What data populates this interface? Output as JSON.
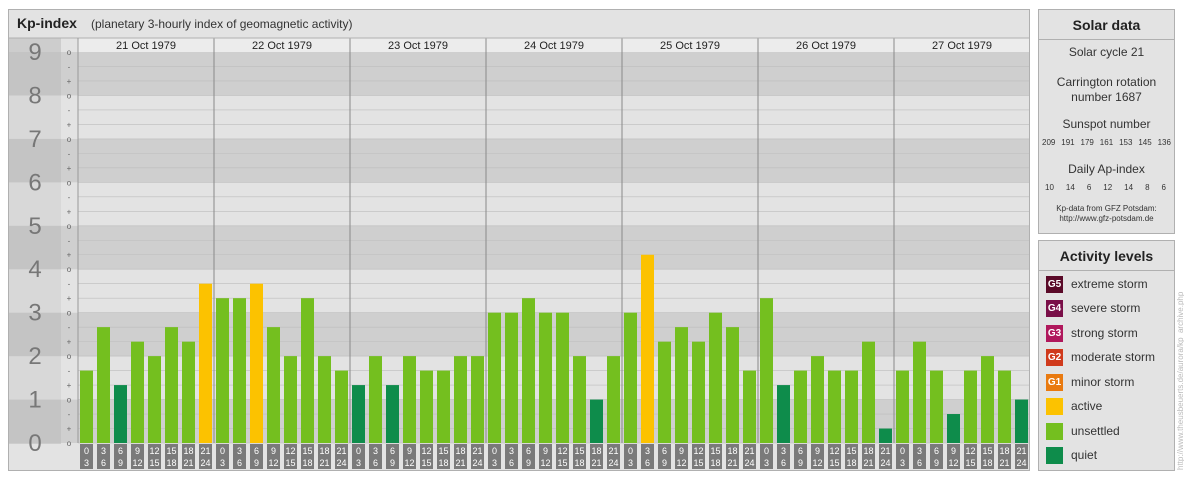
{
  "header": {
    "title": "Kp-index",
    "subtitle": "(planetary 3-hourly index of geomagnetic activity)"
  },
  "chart_data": {
    "type": "bar",
    "title": "Kp-index",
    "subtitle": "(planetary 3-hourly index of geomagnetic activity)",
    "ylim": [
      0,
      9
    ],
    "y_ticks": [
      "0",
      "1",
      "2",
      "3",
      "4",
      "5",
      "6",
      "7",
      "8",
      "9"
    ],
    "sub_ticks": [
      "-",
      "o",
      "+"
    ],
    "days": [
      "21 Oct 1979",
      "22 Oct 1979",
      "23 Oct 1979",
      "24 Oct 1979",
      "25 Oct 1979",
      "26 Oct 1979",
      "27 Oct 1979"
    ],
    "hour_from": [
      "0",
      "3",
      "6",
      "9",
      "12",
      "15",
      "18",
      "21"
    ],
    "hour_to": [
      "3",
      "6",
      "9",
      "12",
      "15",
      "18",
      "21",
      "24"
    ],
    "values": [
      [
        1.667,
        2.667,
        1.333,
        2.333,
        2.0,
        2.667,
        2.333,
        3.667
      ],
      [
        3.333,
        3.333,
        3.667,
        2.667,
        2.0,
        3.333,
        2.0,
        1.667
      ],
      [
        1.333,
        2.0,
        1.333,
        2.0,
        1.667,
        1.667,
        2.0,
        2.0
      ],
      [
        3.0,
        3.0,
        3.333,
        3.0,
        3.0,
        2.0,
        1.0,
        2.0
      ],
      [
        3.0,
        4.333,
        2.333,
        2.667,
        2.333,
        3.0,
        2.667,
        1.667
      ],
      [
        3.333,
        1.333,
        1.667,
        2.0,
        1.667,
        1.667,
        2.333,
        0.333
      ],
      [
        1.667,
        2.333,
        1.667,
        0.667,
        1.667,
        2.0,
        1.667,
        1.0
      ]
    ],
    "colors": {
      "quiet": "#0e8c4b",
      "unsettled": "#74bf1f",
      "active": "#fcc200"
    }
  },
  "solar": {
    "title": "Solar data",
    "cycle": "Solar cycle 21",
    "carrington_line1": "Carrington rotation",
    "carrington_line2": "number 1687",
    "sunspot_title": "Sunspot number",
    "sunspot_values": [
      "209",
      "191",
      "179",
      "161",
      "153",
      "145",
      "136"
    ],
    "ap_title": "Daily Ap-index",
    "ap_values": [
      "10",
      "14",
      "6",
      "12",
      "14",
      "8",
      "6"
    ],
    "source_line1": "Kp-data from GFZ Potsdam:",
    "source_line2": "http://www.gfz-potsdam.de"
  },
  "activity": {
    "title": "Activity levels",
    "items": [
      {
        "badge": "G5",
        "label": "extreme storm",
        "color": "#5a0a28"
      },
      {
        "badge": "G4",
        "label": "severe storm",
        "color": "#7a0f48"
      },
      {
        "badge": "G3",
        "label": "strong storm",
        "color": "#b0185c"
      },
      {
        "badge": "G2",
        "label": "moderate storm",
        "color": "#d03a1c"
      },
      {
        "badge": "G1",
        "label": "minor storm",
        "color": "#e97a10"
      },
      {
        "badge": "",
        "label": "active",
        "color": "#fcc200"
      },
      {
        "badge": "",
        "label": "unsettled",
        "color": "#74bf1f"
      },
      {
        "badge": "",
        "label": "quiet",
        "color": "#0e8c4b"
      }
    ]
  },
  "watermark": "http://www.theusbeuerts.de/aurora/kp_archive.php"
}
